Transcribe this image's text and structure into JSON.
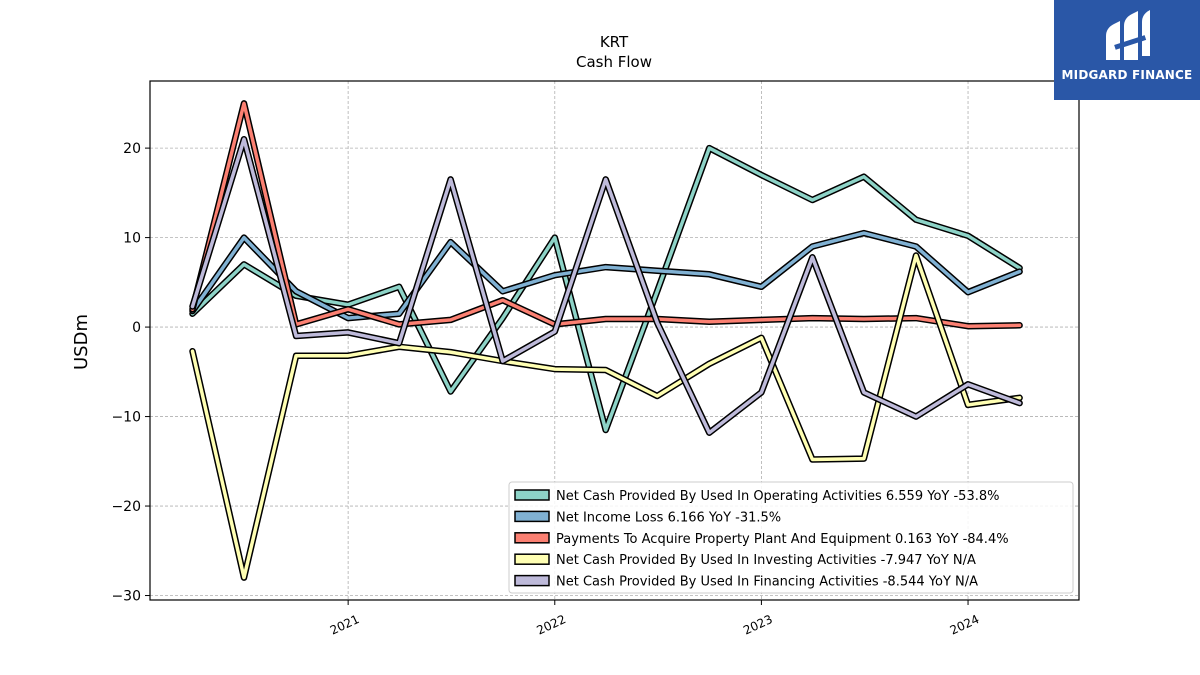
{
  "chart_data": {
    "type": "line",
    "title": "KRT",
    "subtitle": "Cash Flow",
    "ylabel": "USDm",
    "xlabel": "",
    "x": [
      "2020-04-01",
      "2020-07-01",
      "2020-10-01",
      "2021-01-01",
      "2021-04-01",
      "2021-07-01",
      "2021-10-01",
      "2022-01-01",
      "2022-04-01",
      "2022-07-01",
      "2022-10-01",
      "2023-01-01",
      "2023-04-01",
      "2023-07-01",
      "2023-10-01",
      "2024-01-01",
      "2024-04-01"
    ],
    "xlim": [
      "2020-01-17",
      "2024-07-15"
    ],
    "ylim": [
      -30.5,
      27.5
    ],
    "yticks": [
      20,
      10,
      0,
      -10,
      -20,
      -30
    ],
    "ytick_labels": [
      "20",
      "10",
      "0",
      "−10",
      "−20",
      "−30"
    ],
    "xticks": [
      "2021-01-01",
      "2022-01-01",
      "2023-01-01",
      "2024-01-01"
    ],
    "xtick_labels": [
      "2021",
      "2022",
      "2023",
      "2024"
    ],
    "grid": true,
    "legend_position": "lower-right",
    "series": [
      {
        "name": "Net Cash Provided By Used In Operating Activities",
        "legend": "Net Cash Provided By Used In Operating Activities  6.559 YoY -53.8%",
        "color": "#8dd3c7",
        "values": [
          1.5,
          7.0,
          3.5,
          2.5,
          4.5,
          -7.2,
          1.0,
          10.0,
          -11.5,
          4.0,
          20.0,
          17.0,
          14.2,
          16.8,
          12.0,
          10.2,
          6.6
        ]
      },
      {
        "name": "Net Income Loss",
        "legend": "Net Income Loss  6.166 YoY -31.5%",
        "color": "#80b1d3",
        "values": [
          1.8,
          10.0,
          4.0,
          1.0,
          1.5,
          9.5,
          4.0,
          5.8,
          6.7,
          6.3,
          5.9,
          4.5,
          9.0,
          10.5,
          9.0,
          3.9,
          6.2
        ]
      },
      {
        "name": "Payments To Acquire Property Plant And Equipment",
        "legend": "Payments To Acquire Property Plant And Equipment  0.163 YoY -84.4%",
        "color": "#fb8072",
        "values": [
          2.0,
          25.0,
          0.3,
          2.0,
          0.3,
          0.8,
          3.0,
          0.3,
          0.9,
          0.9,
          0.6,
          0.8,
          1.0,
          0.9,
          1.0,
          0.1,
          0.2
        ]
      },
      {
        "name": "Net Cash Provided By Used In Investing Activities",
        "legend": "Net Cash Provided By Used In Investing Activities  -7.947 YoY N/A",
        "color": "#ffffb3",
        "values": [
          -2.7,
          -28.0,
          -3.2,
          -3.2,
          -2.2,
          -2.8,
          -3.8,
          -4.7,
          -4.8,
          -7.7,
          -4.1,
          -1.2,
          -14.8,
          -14.7,
          8.0,
          -8.7,
          -7.9
        ]
      },
      {
        "name": "Net Cash Provided By Used In Financing Activities",
        "legend": "Net Cash Provided By Used In Financing Activities  -8.544 YoY N/A",
        "color": "#bebada",
        "values": [
          2.3,
          21.0,
          -1.0,
          -0.6,
          -1.8,
          16.5,
          -3.8,
          -0.5,
          16.5,
          0.5,
          -11.8,
          -7.3,
          7.8,
          -7.3,
          -10.0,
          -6.4,
          -8.5
        ]
      }
    ]
  },
  "brand": {
    "name": "MIDGARD FINANCE",
    "logo_color": "#2a57a7"
  }
}
